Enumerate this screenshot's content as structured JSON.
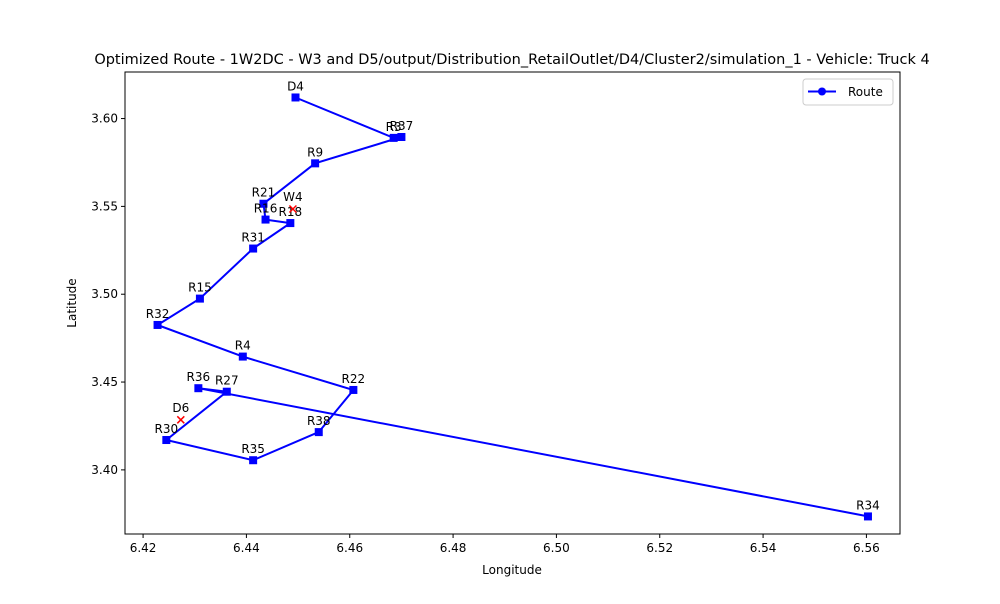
{
  "chart_data": {
    "type": "line",
    "title": "Optimized Route - 1W2DC - W3 and D5/output/Distribution_RetailOutlet/D4/Cluster2/simulation_1 - Vehicle: Truck 4",
    "xlabel": "Longitude",
    "ylabel": "Latitude",
    "xlim": [
      6.4165,
      6.5665
    ],
    "ylim": [
      3.3635,
      3.6265
    ],
    "xticks": [
      "6.42",
      "6.44",
      "6.46",
      "6.48",
      "6.50",
      "6.52",
      "6.54",
      "6.56"
    ],
    "xtick_values": [
      6.42,
      6.44,
      6.46,
      6.48,
      6.5,
      6.52,
      6.54,
      6.56
    ],
    "yticks": [
      "3.40",
      "3.45",
      "3.50",
      "3.55",
      "3.60"
    ],
    "ytick_values": [
      3.4,
      3.45,
      3.5,
      3.55,
      3.6
    ],
    "grid": false,
    "legend": {
      "position": "top-right",
      "entries": [
        "Route"
      ]
    },
    "colors": {
      "route": "#0000ff",
      "marker": "#0000ff",
      "extra_marker": "#ff0000"
    },
    "series": [
      {
        "name": "Route",
        "points": [
          {
            "label": "D4",
            "x": 6.4495,
            "y": 3.612
          },
          {
            "label": "R3",
            "x": 6.4685,
            "y": 3.589
          },
          {
            "label": "R37",
            "x": 6.47,
            "y": 3.5895
          },
          {
            "label": "R9",
            "x": 6.4533,
            "y": 3.5745
          },
          {
            "label": "R21",
            "x": 6.4433,
            "y": 3.5515
          },
          {
            "label": "R16",
            "x": 6.4437,
            "y": 3.5425
          },
          {
            "label": "R18",
            "x": 6.4485,
            "y": 3.5405
          },
          {
            "label": "R31",
            "x": 6.4413,
            "y": 3.526
          },
          {
            "label": "R15",
            "x": 6.431,
            "y": 3.4975
          },
          {
            "label": "R32",
            "x": 6.4228,
            "y": 3.4825
          },
          {
            "label": "R4",
            "x": 6.4393,
            "y": 3.4645
          },
          {
            "label": "R22",
            "x": 6.4607,
            "y": 3.4455
          },
          {
            "label": "R38",
            "x": 6.454,
            "y": 3.4215
          },
          {
            "label": "R35",
            "x": 6.4413,
            "y": 3.4055
          },
          {
            "label": "R30",
            "x": 6.4245,
            "y": 3.417
          },
          {
            "label": "R27",
            "x": 6.4362,
            "y": 3.4445
          },
          {
            "label": "R36",
            "x": 6.4307,
            "y": 3.4465
          },
          {
            "label": "R34",
            "x": 6.5603,
            "y": 3.3735
          }
        ]
      }
    ],
    "extra_points": [
      {
        "label": "W4",
        "x": 6.449,
        "y": 3.5485,
        "marker": "x"
      },
      {
        "label": "D6",
        "x": 6.4273,
        "y": 3.4285,
        "marker": "x"
      }
    ]
  }
}
